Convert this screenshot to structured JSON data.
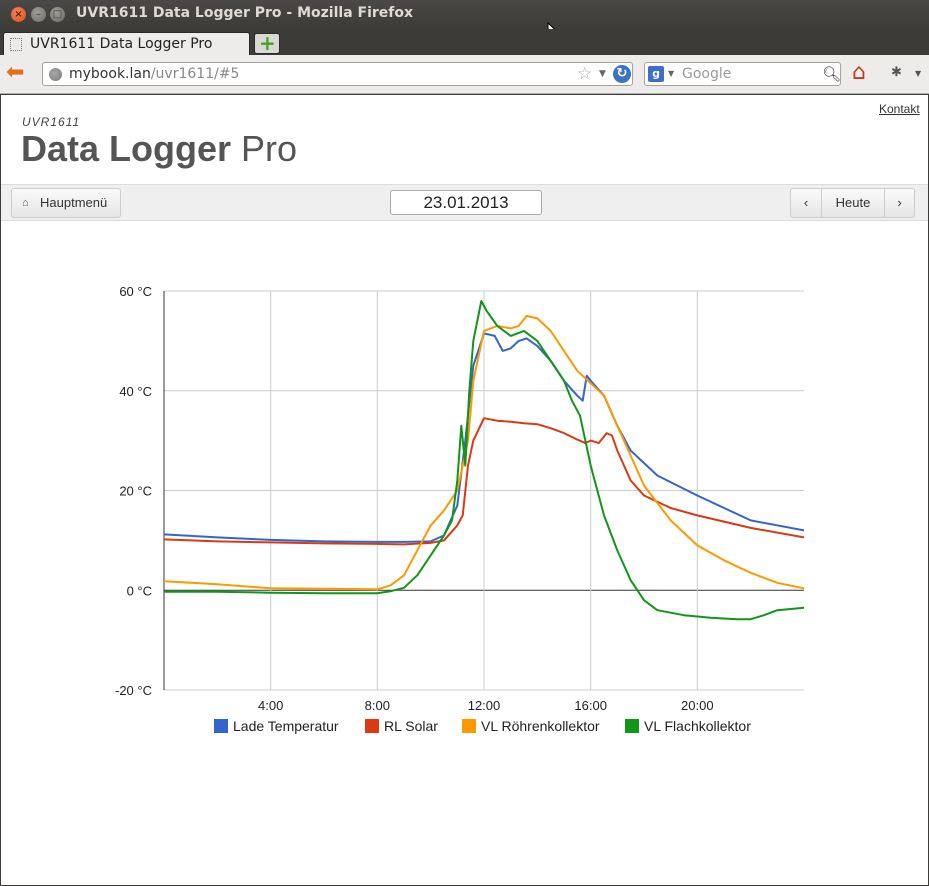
{
  "window": {
    "title": "UVR1611 Data Logger Pro - Mozilla Firefox"
  },
  "browser": {
    "tab_title": "UVR1611 Data Logger Pro",
    "url_host": "mybook.lan",
    "url_path": "/uvr1611/#5",
    "search_placeholder": "Google"
  },
  "page": {
    "kontakt": "Kontakt",
    "logo_small": "UVR1611",
    "logo_bold": "Data Logger",
    "logo_light": "Pro"
  },
  "toolbar": {
    "home_label": "Hauptmenü",
    "date": "23.01.2013",
    "prev_label": "‹",
    "today_label": "Heute",
    "next_label": "›"
  },
  "colors": {
    "Lade Temperatur": "#3366cc",
    "RL Solar": "#dc3912",
    "VL Röhrenkollektor": "#ff9900",
    "VL Flachkollektor": "#109618"
  },
  "chart_data": {
    "type": "line",
    "xlim": [
      0,
      24
    ],
    "ylim": [
      -20,
      60
    ],
    "x_ticks": [
      4,
      8,
      12,
      16,
      20
    ],
    "x_tick_labels": [
      "4:00",
      "8:00",
      "12:00",
      "16:00",
      "20:00"
    ],
    "y_ticks": [
      -20,
      0,
      20,
      40,
      60
    ],
    "y_tick_labels": [
      "-20 °C",
      "0 °C",
      "20 °C",
      "40 °C",
      "60 °C"
    ],
    "grid": true,
    "legend_position": "bottom",
    "series": [
      {
        "name": "Lade Temperatur",
        "points": [
          [
            0,
            11.2
          ],
          [
            2,
            10.6
          ],
          [
            4,
            10.1
          ],
          [
            6,
            9.8
          ],
          [
            8,
            9.7
          ],
          [
            9,
            9.7
          ],
          [
            10,
            9.8
          ],
          [
            10.5,
            11
          ],
          [
            11,
            17
          ],
          [
            11.3,
            30
          ],
          [
            11.6,
            45
          ],
          [
            12,
            51.5
          ],
          [
            12.4,
            51
          ],
          [
            12.7,
            48
          ],
          [
            13,
            48.5
          ],
          [
            13.3,
            50
          ],
          [
            13.6,
            50.5
          ],
          [
            14,
            49
          ],
          [
            14.5,
            46
          ],
          [
            15,
            42
          ],
          [
            15.5,
            39
          ],
          [
            15.7,
            38
          ],
          [
            15.85,
            43
          ],
          [
            16,
            42
          ],
          [
            16.5,
            39
          ],
          [
            17,
            33
          ],
          [
            17.5,
            28
          ],
          [
            18.5,
            23
          ],
          [
            20,
            19
          ],
          [
            22,
            14
          ],
          [
            24,
            12
          ]
        ]
      },
      {
        "name": "RL Solar",
        "points": [
          [
            0,
            10.2
          ],
          [
            2,
            9.8
          ],
          [
            4,
            9.6
          ],
          [
            6,
            9.4
          ],
          [
            8,
            9.3
          ],
          [
            9,
            9.2
          ],
          [
            10,
            9.5
          ],
          [
            10.5,
            10
          ],
          [
            11,
            13
          ],
          [
            11.2,
            15
          ],
          [
            11.4,
            25
          ],
          [
            11.6,
            30
          ],
          [
            12,
            34.5
          ],
          [
            12.5,
            34
          ],
          [
            13,
            33.8
          ],
          [
            13.5,
            33.5
          ],
          [
            14,
            33.3
          ],
          [
            14.5,
            32.5
          ],
          [
            15,
            31.5
          ],
          [
            15.5,
            30.2
          ],
          [
            15.8,
            29.5
          ],
          [
            16,
            30
          ],
          [
            16.3,
            29.5
          ],
          [
            16.6,
            31.5
          ],
          [
            16.8,
            31
          ],
          [
            17,
            28
          ],
          [
            17.5,
            22
          ],
          [
            18,
            19
          ],
          [
            19,
            16.5
          ],
          [
            20,
            15
          ],
          [
            22,
            12.5
          ],
          [
            24,
            10.6
          ]
        ]
      },
      {
        "name": "VL Röhrenkollektor",
        "points": [
          [
            0,
            1.8
          ],
          [
            2,
            1.2
          ],
          [
            4,
            0.4
          ],
          [
            6,
            0.3
          ],
          [
            8,
            0.2
          ],
          [
            8.5,
            1
          ],
          [
            9,
            3
          ],
          [
            9.5,
            8
          ],
          [
            10,
            13
          ],
          [
            10.5,
            16
          ],
          [
            11,
            20
          ],
          [
            11.2,
            25
          ],
          [
            11.4,
            30
          ],
          [
            11.6,
            42
          ],
          [
            12,
            52
          ],
          [
            12.5,
            53
          ],
          [
            13,
            52.5
          ],
          [
            13.3,
            53
          ],
          [
            13.6,
            55
          ],
          [
            14,
            54.5
          ],
          [
            14.5,
            52
          ],
          [
            15,
            48
          ],
          [
            15.5,
            44
          ],
          [
            15.7,
            43
          ],
          [
            16,
            41.5
          ],
          [
            16.5,
            39
          ],
          [
            17,
            33
          ],
          [
            17.5,
            27
          ],
          [
            18,
            21
          ],
          [
            19,
            14
          ],
          [
            20,
            9
          ],
          [
            21,
            6
          ],
          [
            22,
            3.5
          ],
          [
            23,
            1.5
          ],
          [
            24,
            0.4
          ]
        ]
      },
      {
        "name": "VL Flachkollektor",
        "points": [
          [
            0,
            -0.3
          ],
          [
            2,
            -0.3
          ],
          [
            4,
            -0.5
          ],
          [
            6,
            -0.6
          ],
          [
            8,
            -0.6
          ],
          [
            8.5,
            -0.2
          ],
          [
            9,
            0.5
          ],
          [
            9.5,
            3
          ],
          [
            10,
            7
          ],
          [
            10.5,
            11
          ],
          [
            10.8,
            14
          ],
          [
            11,
            22
          ],
          [
            11.15,
            33
          ],
          [
            11.3,
            25
          ],
          [
            11.45,
            40
          ],
          [
            11.6,
            50
          ],
          [
            11.9,
            58
          ],
          [
            12.1,
            56
          ],
          [
            12.5,
            53
          ],
          [
            13,
            51
          ],
          [
            13.5,
            52
          ],
          [
            14,
            50
          ],
          [
            14.5,
            46
          ],
          [
            15,
            42
          ],
          [
            15.3,
            38
          ],
          [
            15.6,
            35
          ],
          [
            16,
            25
          ],
          [
            16.5,
            15
          ],
          [
            17,
            8
          ],
          [
            17.5,
            2
          ],
          [
            18,
            -2
          ],
          [
            18.5,
            -4
          ],
          [
            19.5,
            -5
          ],
          [
            20.5,
            -5.5
          ],
          [
            21.5,
            -5.8
          ],
          [
            22,
            -5.8
          ],
          [
            22.5,
            -5
          ],
          [
            23,
            -4
          ],
          [
            24,
            -3.5
          ]
        ]
      }
    ]
  }
}
